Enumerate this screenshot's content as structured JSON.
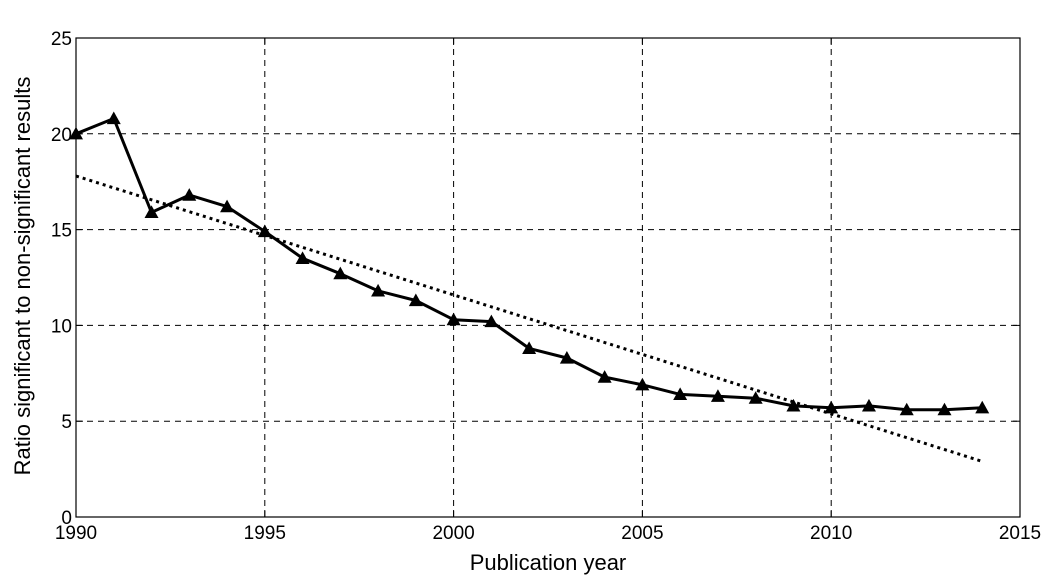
{
  "chart_data": {
    "type": "line",
    "title": "",
    "xlabel": "Publication year",
    "ylabel": "Ratio significant to non-significant results",
    "xlim": [
      1990,
      2015
    ],
    "ylim": [
      0,
      25
    ],
    "xticks": [
      1990,
      1995,
      2000,
      2005,
      2010,
      2015
    ],
    "yticks": [
      0,
      5,
      10,
      15,
      20,
      25
    ],
    "grid": true,
    "legend": "none",
    "series": [
      {
        "style": "solid",
        "marker": "triangle",
        "color": "#000000",
        "x": [
          1990,
          1991,
          1992,
          1993,
          1994,
          1995,
          1996,
          1997,
          1998,
          1999,
          2000,
          2001,
          2002,
          2003,
          2004,
          2005,
          2006,
          2007,
          2008,
          2009,
          2010,
          2011,
          2012,
          2013,
          2014
        ],
        "values": [
          20.0,
          20.8,
          15.9,
          16.8,
          16.2,
          14.9,
          13.5,
          12.7,
          11.8,
          11.3,
          10.3,
          10.2,
          8.8,
          8.3,
          7.3,
          6.9,
          6.4,
          6.3,
          6.2,
          5.8,
          5.7,
          5.8,
          5.6,
          5.6,
          5.7
        ]
      },
      {
        "style": "dotted",
        "marker": "none",
        "color": "#000000",
        "x": [
          1990,
          2014
        ],
        "values": [
          17.8,
          2.9
        ]
      }
    ]
  }
}
